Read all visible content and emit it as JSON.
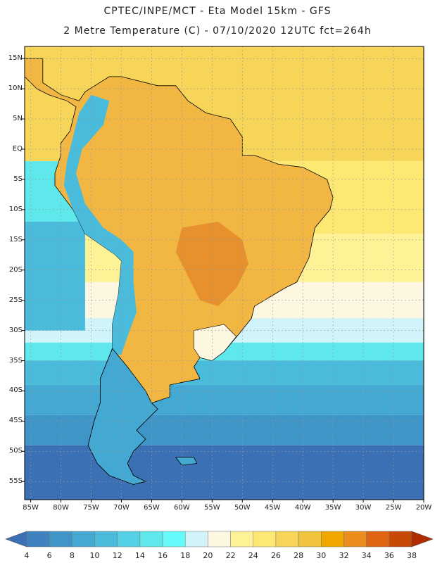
{
  "header": {
    "line1": "CPTEC/INPE/MCT -  Eta Model 15km - GFS",
    "line2": "2 Metre Temperature (C) - 07/10/2020 12UTC fct=264h"
  },
  "axes": {
    "lat_labels": [
      "15N",
      "10N",
      "5N",
      "EQ",
      "5S",
      "10S",
      "15S",
      "20S",
      "25S",
      "30S",
      "35S",
      "40S",
      "45S",
      "50S",
      "55S"
    ],
    "lat_values": [
      15,
      10,
      5,
      0,
      -5,
      -10,
      -15,
      -20,
      -25,
      -30,
      -35,
      -40,
      -45,
      -50,
      -55
    ],
    "lon_labels": [
      "85W",
      "80W",
      "75W",
      "70W",
      "65W",
      "60W",
      "55W",
      "50W",
      "45W",
      "40W",
      "35W",
      "30W",
      "25W",
      "20W"
    ],
    "lon_values": [
      -85,
      -80,
      -75,
      -70,
      -65,
      -60,
      -55,
      -50,
      -45,
      -40,
      -35,
      -30,
      -25,
      -20
    ]
  },
  "colorbar": {
    "labels": [
      "4",
      "6",
      "8",
      "10",
      "12",
      "14",
      "16",
      "18",
      "20",
      "22",
      "24",
      "26",
      "28",
      "30",
      "32",
      "34",
      "36",
      "38"
    ],
    "colors": [
      "#3c70b4",
      "#3e82c0",
      "#3f95c8",
      "#44a9d2",
      "#4bbbdc",
      "#56d0e4",
      "#5ee8ec",
      "#66fafa",
      "#d0f4fa",
      "#fdf6e0",
      "#fdf296",
      "#fde873",
      "#f6d558",
      "#f0c43e",
      "#f0a800",
      "#ec8c1c",
      "#e06414",
      "#c84806",
      "#b02c00"
    ]
  },
  "map": {
    "lat_range": [
      -58,
      17
    ],
    "lon_range": [
      -86,
      -20
    ],
    "ocean_bands": [
      {
        "lat_top": 17,
        "lat_bottom": -2,
        "color": "#f6d558"
      },
      {
        "lat_top": -2,
        "lat_bottom": -14,
        "color": "#fde873"
      },
      {
        "lat_top": -14,
        "lat_bottom": -22,
        "color": "#fdf296"
      },
      {
        "lat_top": -22,
        "lat_bottom": -28,
        "color": "#fdf6e0"
      },
      {
        "lat_top": -28,
        "lat_bottom": -32,
        "color": "#d0f4fa"
      },
      {
        "lat_top": -32,
        "lat_bottom": -35,
        "color": "#5ee8ec"
      },
      {
        "lat_top": -35,
        "lat_bottom": -39,
        "color": "#4bbbdc"
      },
      {
        "lat_top": -39,
        "lat_bottom": -44,
        "color": "#44a9d2"
      },
      {
        "lat_top": -44,
        "lat_bottom": -49,
        "color": "#3f95c8"
      },
      {
        "lat_top": -49,
        "lat_bottom": -58,
        "color": "#3c70b4"
      }
    ],
    "pacific_zones": [
      {
        "lon_max": -76,
        "lat_top": -2,
        "lat_bottom": -12,
        "color": "#5ee8ec"
      },
      {
        "lon_max": -76,
        "lat_top": -12,
        "lat_bottom": -30,
        "color": "#4bbbdc"
      }
    ],
    "continent_color": "#f2b743",
    "andes_color": "#4bbbdc",
    "hot_core_color": "#e58a2a",
    "south_land_color": "#44a9d2"
  }
}
